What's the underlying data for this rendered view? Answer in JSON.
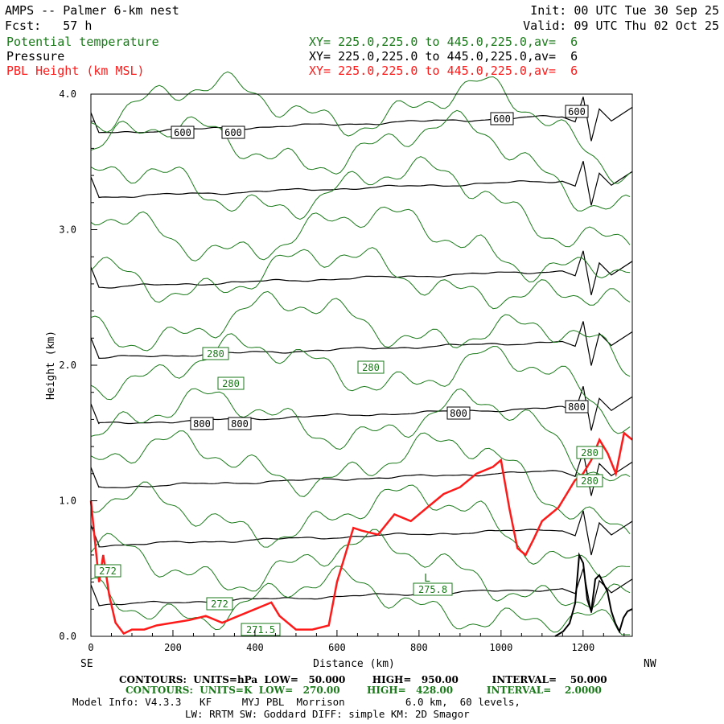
{
  "header": {
    "title": "AMPS -- Palmer 6-km nest",
    "fcst": "Fcst:   57 h",
    "init": "Init: 00 UTC Tue 30 Sep 25",
    "valid": "Valid: 09 UTC Thu 02 Oct 25",
    "fields": [
      {
        "name": "Potential temperature",
        "xy": "XY= 225.0,225.0 to 445.0,225.0,av=  6",
        "color": "#1a7a1a"
      },
      {
        "name": "Pressure",
        "xy": "XY= 225.0,225.0 to 445.0,225.0,av=  6",
        "color": "#000000"
      },
      {
        "name": "PBL Height (km MSL)",
        "xy": "XY= 225.0,225.0 to 445.0,225.0,av=  6",
        "color": "#ff1a1a"
      }
    ]
  },
  "chart_data": {
    "type": "line",
    "xlabel": "Distance (km)",
    "ylabel": "Height (km)",
    "xlim": [
      0,
      1320
    ],
    "ylim": [
      0.0,
      4.0
    ],
    "x_ticks": [
      "0",
      "200",
      "400",
      "600",
      "800",
      "1000",
      "1200"
    ],
    "y_ticks": [
      "0.0",
      "1.0",
      "2.0",
      "3.0",
      "4.0"
    ],
    "left_end_label": "SE",
    "right_end_label": "NW",
    "series": [
      {
        "name": "PBL Height (km MSL)",
        "color": "#ff1a1a",
        "x": [
          0,
          20,
          30,
          45,
          60,
          80,
          100,
          130,
          160,
          200,
          240,
          280,
          320,
          360,
          400,
          440,
          460,
          500,
          540,
          580,
          600,
          640,
          660,
          700,
          740,
          780,
          820,
          860,
          900,
          940,
          980,
          1000,
          1020,
          1040,
          1060,
          1080,
          1100,
          1120,
          1140,
          1160,
          1180,
          1200,
          1220,
          1240,
          1260,
          1280,
          1300,
          1320
        ],
        "y": [
          1.0,
          0.4,
          0.6,
          0.3,
          0.1,
          0.02,
          0.05,
          0.05,
          0.08,
          0.1,
          0.12,
          0.15,
          0.1,
          0.15,
          0.2,
          0.25,
          0.15,
          0.05,
          0.05,
          0.08,
          0.4,
          0.8,
          0.78,
          0.75,
          0.9,
          0.85,
          0.95,
          1.05,
          1.1,
          1.2,
          1.25,
          1.3,
          0.95,
          0.65,
          0.6,
          0.72,
          0.85,
          0.9,
          0.95,
          1.05,
          1.15,
          1.2,
          1.3,
          1.45,
          1.35,
          1.2,
          1.5,
          1.45
        ]
      }
    ],
    "pressure_contour_labels": [
      "600",
      "600",
      "600",
      "600",
      "800",
      "800",
      "800",
      "800"
    ],
    "theta_contour_labels": [
      "280",
      "280",
      "280",
      "280",
      "280",
      "272",
      "272",
      "271.5",
      "275.8"
    ],
    "low_marker": "L",
    "contour_info": [
      {
        "text": "CONTOURS:  UNITS=hPa  LOW=   50.000        HIGH=   950.00          INTERVAL=    50.000",
        "color": "#000000"
      },
      {
        "text": "CONTOURS:  UNITS=K  LOW=   270.00        HIGH=   428.00          INTERVAL=    2.0000",
        "color": "#1a7a1a"
      }
    ],
    "model_info": [
      "Model Info: V4.3.3   KF     MYJ PBL  Morrison          6.0 km,  60 levels,",
      "LW: RRTM SW: Goddard DIFF: simple KM: 2D Smagor"
    ]
  }
}
